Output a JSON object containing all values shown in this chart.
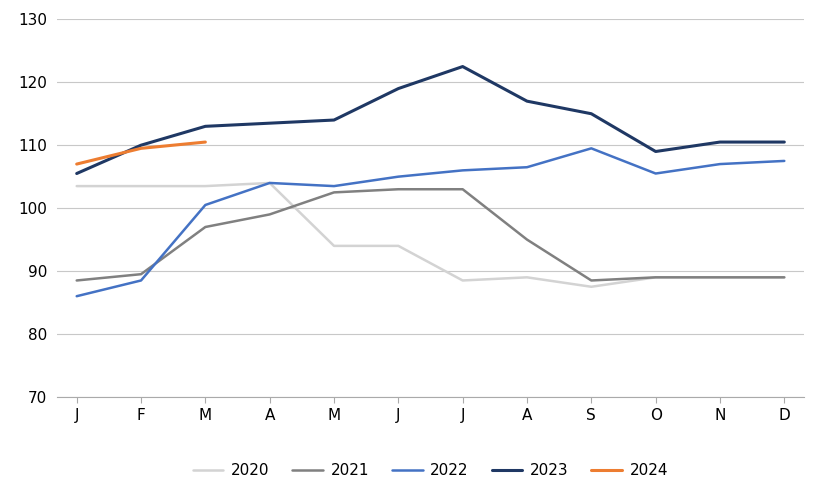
{
  "months": [
    "J",
    "F",
    "M",
    "A",
    "M",
    "J",
    "J",
    "A",
    "S",
    "O",
    "N",
    "D"
  ],
  "series": {
    "2020": [
      103.5,
      103.5,
      103.5,
      104.0,
      94.0,
      94.0,
      88.5,
      89.0,
      87.5,
      89.0,
      89.0,
      89.0
    ],
    "2021": [
      88.5,
      89.5,
      97.0,
      99.0,
      102.5,
      103.0,
      103.0,
      95.0,
      88.5,
      89.0,
      89.0,
      89.0
    ],
    "2022": [
      86.0,
      88.5,
      100.5,
      104.0,
      103.5,
      105.0,
      106.0,
      106.5,
      109.5,
      105.5,
      107.0,
      107.5
    ],
    "2023": [
      105.5,
      110.0,
      113.0,
      113.5,
      114.0,
      119.0,
      122.5,
      117.0,
      115.0,
      109.0,
      110.5,
      110.5
    ],
    "2024": [
      107.0,
      109.5,
      110.5
    ]
  },
  "colors": {
    "2020": "#d3d3d3",
    "2021": "#808080",
    "2022": "#4472c4",
    "2023": "#1f3864",
    "2024": "#ed7d31"
  },
  "line_widths": {
    "2020": 1.8,
    "2021": 1.8,
    "2022": 1.8,
    "2023": 2.2,
    "2024": 2.2
  },
  "ylim": [
    70,
    130
  ],
  "yticks": [
    70,
    80,
    90,
    100,
    110,
    120,
    130
  ],
  "background_color": "#ffffff",
  "grid_color": "#c8c8c8",
  "legend_labels": [
    "2020",
    "2021",
    "2022",
    "2023",
    "2024"
  ]
}
